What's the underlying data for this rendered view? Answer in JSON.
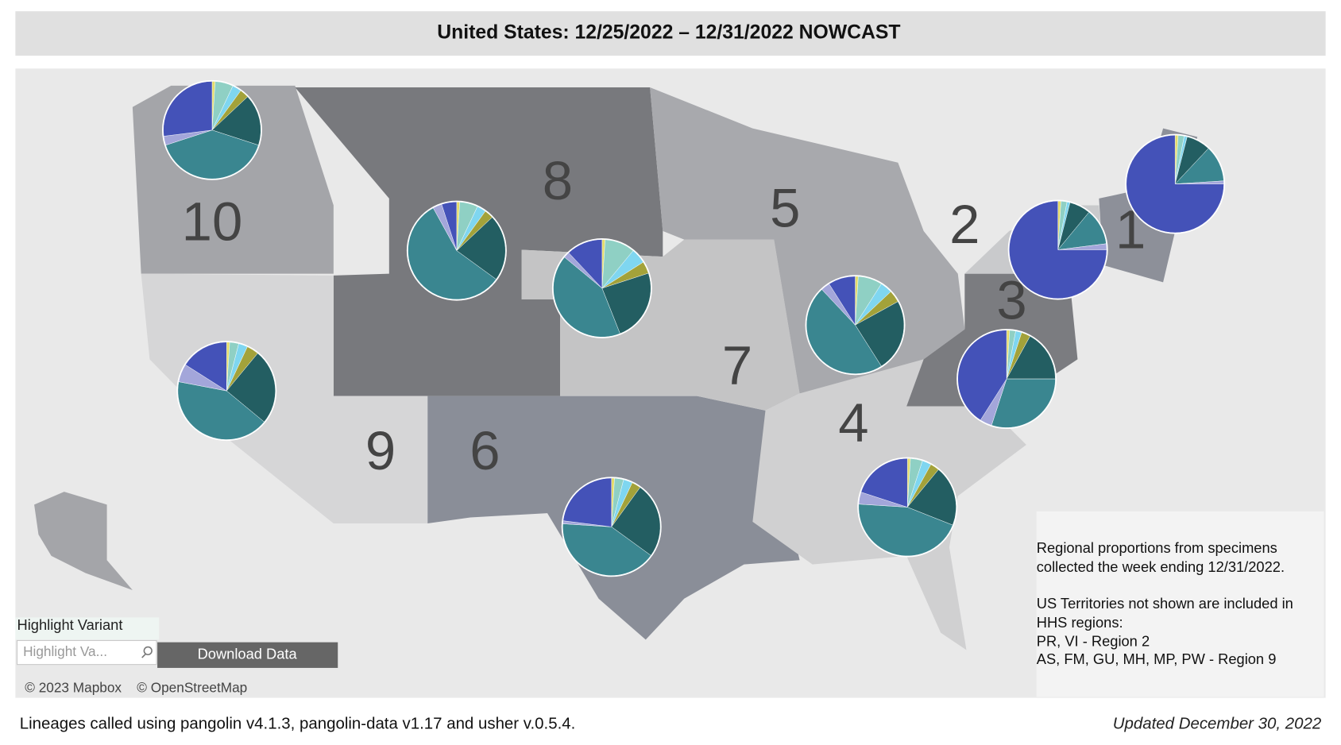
{
  "header": {
    "title": "United States: 12/25/2022 – 12/31/2022 NOWCAST"
  },
  "slice_colors": [
    "#e4dc6a",
    "#8fd0c4",
    "#7fd6f0",
    "#a3a23a",
    "#235e62",
    "#3a8690",
    "#a3a6da",
    "#4452b8"
  ],
  "regions": [
    {
      "label": "10",
      "shares": [
        1,
        6,
        3,
        3,
        17,
        40,
        3,
        27
      ]
    },
    {
      "label": "8",
      "shares": [
        1,
        6,
        3,
        3,
        22,
        57,
        3,
        5
      ]
    },
    {
      "label": "7",
      "shares": [
        1,
        10,
        5,
        4,
        24,
        42,
        2,
        12
      ]
    },
    {
      "label": "5",
      "shares": [
        1,
        8,
        4,
        4,
        24,
        47,
        3,
        9
      ]
    },
    {
      "label": "2",
      "shares": [
        1,
        2,
        1,
        0,
        7,
        12,
        2,
        75
      ]
    },
    {
      "label": "1",
      "shares": [
        1,
        2,
        1,
        0,
        8,
        12,
        1,
        75
      ]
    },
    {
      "label": "3",
      "shares": [
        1,
        2,
        2,
        3,
        17,
        30,
        4,
        41
      ]
    },
    {
      "label": "9",
      "shares": [
        1,
        3,
        3,
        4,
        25,
        42,
        6,
        16
      ]
    },
    {
      "label": "6",
      "shares": [
        1,
        3,
        3,
        3,
        25,
        41,
        1,
        23
      ]
    },
    {
      "label": "4",
      "shares": [
        1,
        4,
        3,
        3,
        20,
        45,
        4,
        20
      ]
    }
  ],
  "notes": [
    "Regional proportions from specimens",
    "collected the week ending 12/31/2022.",
    "US Territories not shown are included in",
    "HHS regions:",
    "PR, VI - Region 2",
    "AS, FM, GU, MH, MP, PW - Region 9"
  ],
  "controls": {
    "highlight_label": "Highlight Variant",
    "highlight_placeholder": "Highlight Va...",
    "download_button": "Download Data"
  },
  "attribution": [
    "© 2023 Mapbox",
    "© OpenStreetMap"
  ],
  "footer": {
    "left": "Lineages called using pangolin v4.1.3, pangolin-data v1.17 and usher v.0.5.4.",
    "right": "Updated December 30, 2022"
  }
}
